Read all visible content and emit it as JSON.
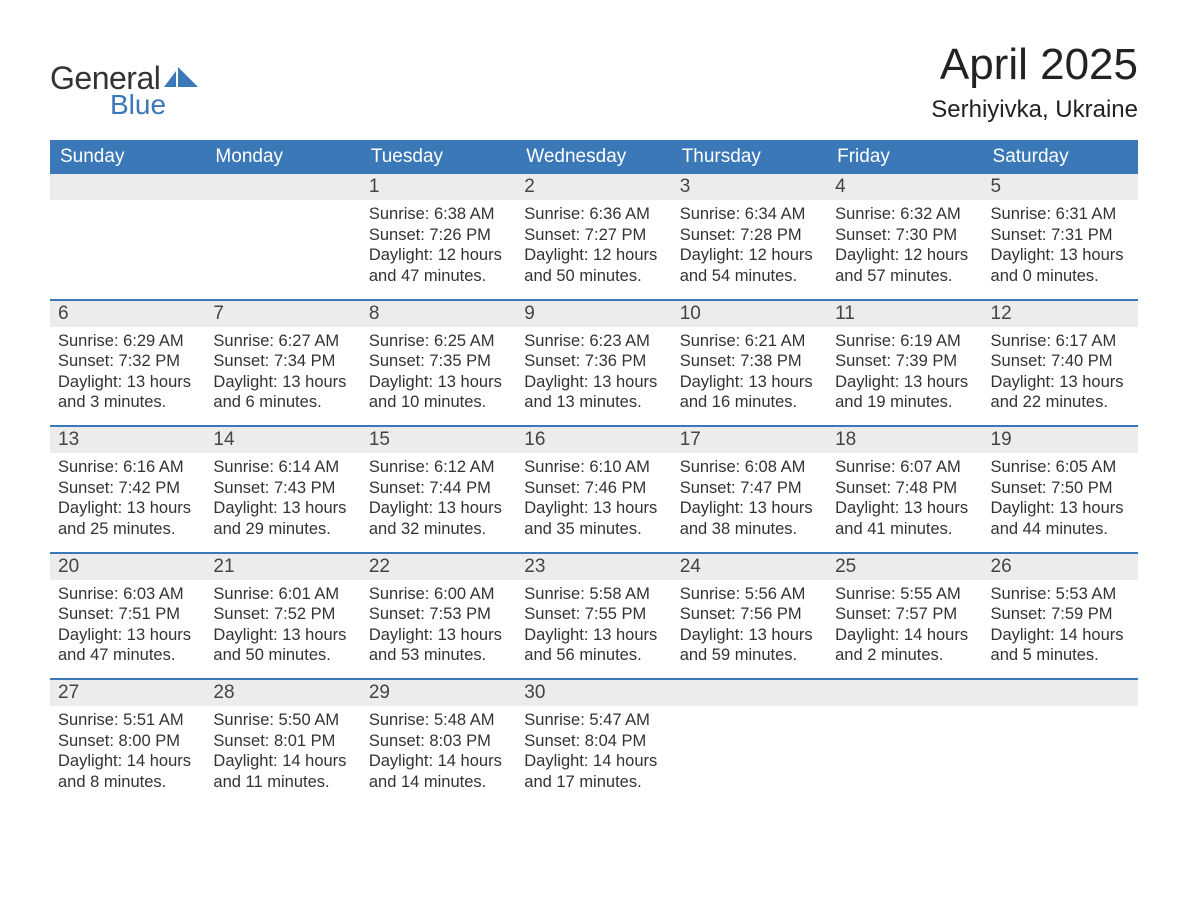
{
  "brand": {
    "general": "General",
    "blue": "Blue"
  },
  "title": "April 2025",
  "location": "Serhiyivka, Ukraine",
  "colors": {
    "header_bg": "#3b78b8",
    "daynum_bg": "#ececec",
    "week_border": "#3b78b8",
    "page_bg": "#ffffff",
    "text": "#333333"
  },
  "fonts": {
    "title_pt": 44,
    "location_pt": 24,
    "dayhead_pt": 19,
    "body_pt": 16
  },
  "day_headers": [
    "Sunday",
    "Monday",
    "Tuesday",
    "Wednesday",
    "Thursday",
    "Friday",
    "Saturday"
  ],
  "weeks": [
    [
      {
        "day": null
      },
      {
        "day": null
      },
      {
        "day": 1,
        "sunrise": "6:38 AM",
        "sunset": "7:26 PM",
        "daylight_h": 12,
        "daylight_m": 47
      },
      {
        "day": 2,
        "sunrise": "6:36 AM",
        "sunset": "7:27 PM",
        "daylight_h": 12,
        "daylight_m": 50
      },
      {
        "day": 3,
        "sunrise": "6:34 AM",
        "sunset": "7:28 PM",
        "daylight_h": 12,
        "daylight_m": 54
      },
      {
        "day": 4,
        "sunrise": "6:32 AM",
        "sunset": "7:30 PM",
        "daylight_h": 12,
        "daylight_m": 57
      },
      {
        "day": 5,
        "sunrise": "6:31 AM",
        "sunset": "7:31 PM",
        "daylight_h": 13,
        "daylight_m": 0
      }
    ],
    [
      {
        "day": 6,
        "sunrise": "6:29 AM",
        "sunset": "7:32 PM",
        "daylight_h": 13,
        "daylight_m": 3
      },
      {
        "day": 7,
        "sunrise": "6:27 AM",
        "sunset": "7:34 PM",
        "daylight_h": 13,
        "daylight_m": 6
      },
      {
        "day": 8,
        "sunrise": "6:25 AM",
        "sunset": "7:35 PM",
        "daylight_h": 13,
        "daylight_m": 10
      },
      {
        "day": 9,
        "sunrise": "6:23 AM",
        "sunset": "7:36 PM",
        "daylight_h": 13,
        "daylight_m": 13
      },
      {
        "day": 10,
        "sunrise": "6:21 AM",
        "sunset": "7:38 PM",
        "daylight_h": 13,
        "daylight_m": 16
      },
      {
        "day": 11,
        "sunrise": "6:19 AM",
        "sunset": "7:39 PM",
        "daylight_h": 13,
        "daylight_m": 19
      },
      {
        "day": 12,
        "sunrise": "6:17 AM",
        "sunset": "7:40 PM",
        "daylight_h": 13,
        "daylight_m": 22
      }
    ],
    [
      {
        "day": 13,
        "sunrise": "6:16 AM",
        "sunset": "7:42 PM",
        "daylight_h": 13,
        "daylight_m": 25
      },
      {
        "day": 14,
        "sunrise": "6:14 AM",
        "sunset": "7:43 PM",
        "daylight_h": 13,
        "daylight_m": 29
      },
      {
        "day": 15,
        "sunrise": "6:12 AM",
        "sunset": "7:44 PM",
        "daylight_h": 13,
        "daylight_m": 32
      },
      {
        "day": 16,
        "sunrise": "6:10 AM",
        "sunset": "7:46 PM",
        "daylight_h": 13,
        "daylight_m": 35
      },
      {
        "day": 17,
        "sunrise": "6:08 AM",
        "sunset": "7:47 PM",
        "daylight_h": 13,
        "daylight_m": 38
      },
      {
        "day": 18,
        "sunrise": "6:07 AM",
        "sunset": "7:48 PM",
        "daylight_h": 13,
        "daylight_m": 41
      },
      {
        "day": 19,
        "sunrise": "6:05 AM",
        "sunset": "7:50 PM",
        "daylight_h": 13,
        "daylight_m": 44
      }
    ],
    [
      {
        "day": 20,
        "sunrise": "6:03 AM",
        "sunset": "7:51 PM",
        "daylight_h": 13,
        "daylight_m": 47
      },
      {
        "day": 21,
        "sunrise": "6:01 AM",
        "sunset": "7:52 PM",
        "daylight_h": 13,
        "daylight_m": 50
      },
      {
        "day": 22,
        "sunrise": "6:00 AM",
        "sunset": "7:53 PM",
        "daylight_h": 13,
        "daylight_m": 53
      },
      {
        "day": 23,
        "sunrise": "5:58 AM",
        "sunset": "7:55 PM",
        "daylight_h": 13,
        "daylight_m": 56
      },
      {
        "day": 24,
        "sunrise": "5:56 AM",
        "sunset": "7:56 PM",
        "daylight_h": 13,
        "daylight_m": 59
      },
      {
        "day": 25,
        "sunrise": "5:55 AM",
        "sunset": "7:57 PM",
        "daylight_h": 14,
        "daylight_m": 2
      },
      {
        "day": 26,
        "sunrise": "5:53 AM",
        "sunset": "7:59 PM",
        "daylight_h": 14,
        "daylight_m": 5
      }
    ],
    [
      {
        "day": 27,
        "sunrise": "5:51 AM",
        "sunset": "8:00 PM",
        "daylight_h": 14,
        "daylight_m": 8
      },
      {
        "day": 28,
        "sunrise": "5:50 AM",
        "sunset": "8:01 PM",
        "daylight_h": 14,
        "daylight_m": 11
      },
      {
        "day": 29,
        "sunrise": "5:48 AM",
        "sunset": "8:03 PM",
        "daylight_h": 14,
        "daylight_m": 14
      },
      {
        "day": 30,
        "sunrise": "5:47 AM",
        "sunset": "8:04 PM",
        "daylight_h": 14,
        "daylight_m": 17
      },
      {
        "day": null
      },
      {
        "day": null
      },
      {
        "day": null
      }
    ]
  ],
  "labels": {
    "sunrise_prefix": "Sunrise: ",
    "sunset_prefix": "Sunset: ",
    "daylight_prefix": "Daylight: ",
    "hours_word": " hours",
    "and_word": "and ",
    "minutes_word": " minutes."
  }
}
